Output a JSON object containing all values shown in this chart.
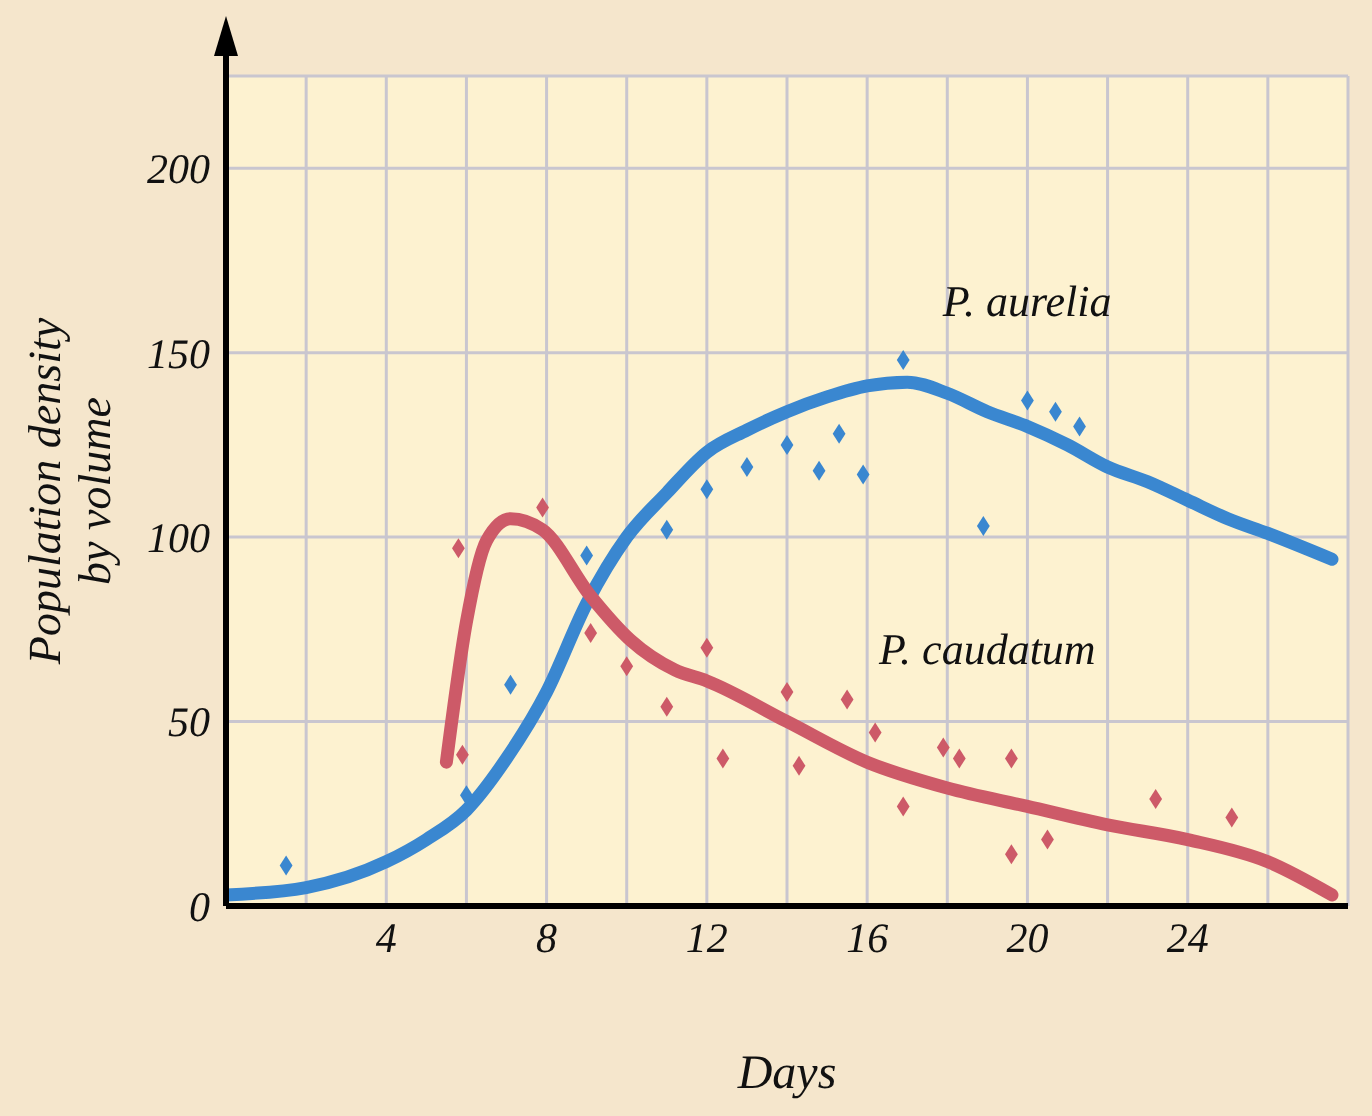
{
  "chart_data": {
    "type": "line",
    "xlabel": "Days",
    "ylabel": "Population density\nby volume",
    "xlim": [
      0,
      28
    ],
    "ylim": [
      0,
      225
    ],
    "xticks": [
      {
        "value": 2,
        "label": null
      },
      4,
      {
        "value": 6,
        "label": null
      },
      8,
      {
        "value": 10,
        "label": null
      },
      12,
      {
        "value": 14,
        "label": null
      },
      16,
      {
        "value": 18,
        "label": null
      },
      20,
      {
        "value": 22,
        "label": null
      },
      24,
      {
        "value": 26,
        "label": null
      }
    ],
    "yticks": [
      0,
      50,
      100,
      150,
      200
    ],
    "grid": true,
    "legend": false,
    "series": [
      {
        "name": "P. aurelia",
        "type": "line",
        "color": "#3a87d0",
        "marker": "none",
        "line_style": "solid",
        "x": [
          0,
          2,
          4,
          5,
          6,
          7,
          8,
          9,
          10,
          11,
          12,
          13,
          14,
          15,
          16,
          17,
          18,
          19,
          20,
          21,
          22,
          23,
          24,
          25,
          26,
          27.6
        ],
        "values": [
          3,
          5,
          12,
          18,
          26,
          40,
          58,
          82,
          100,
          112,
          123,
          129,
          134,
          138,
          141,
          142,
          139,
          134,
          130,
          125,
          119,
          115,
          110,
          105,
          101,
          94
        ]
      },
      {
        "name": "P. caudatum",
        "type": "line",
        "color": "#cd5a68",
        "marker": "none",
        "line_style": "solid",
        "x": [
          5.5,
          6.0,
          6.5,
          7.1,
          7.9,
          9.1,
          10.1,
          11.2,
          12,
          14,
          16,
          18,
          20,
          22,
          24,
          26,
          27.6
        ],
        "values": [
          39,
          77,
          99,
          105,
          102,
          84,
          72,
          64,
          61,
          50,
          39,
          32,
          27,
          22,
          18,
          12,
          3
        ]
      },
      {
        "type": "scatter",
        "color": "#3a87d0",
        "marker": "diamond",
        "x": [
          1.5,
          6.0,
          7.1,
          9.0,
          11.0,
          12.0,
          13.0,
          14.0,
          14.8,
          15.3,
          15.9,
          16.9,
          18.9,
          20.0,
          20.7,
          21.3
        ],
        "values": [
          11,
          30,
          60,
          95,
          102,
          113,
          119,
          125,
          118,
          128,
          117,
          148,
          103,
          137,
          134,
          130
        ]
      },
      {
        "type": "scatter",
        "color": "#cd5a68",
        "marker": "diamond",
        "x": [
          5.8,
          5.9,
          7.9,
          9.1,
          10.0,
          11.0,
          12.0,
          12.4,
          14.0,
          14.3,
          15.5,
          16.2,
          16.9,
          17.9,
          18.3,
          19.6,
          19.6,
          20.5,
          23.2,
          25.1
        ],
        "values": [
          97,
          41,
          108,
          74,
          65,
          54,
          70,
          40,
          58,
          38,
          56,
          47,
          27,
          43,
          40,
          40,
          14,
          18,
          29,
          24
        ]
      }
    ]
  }
}
